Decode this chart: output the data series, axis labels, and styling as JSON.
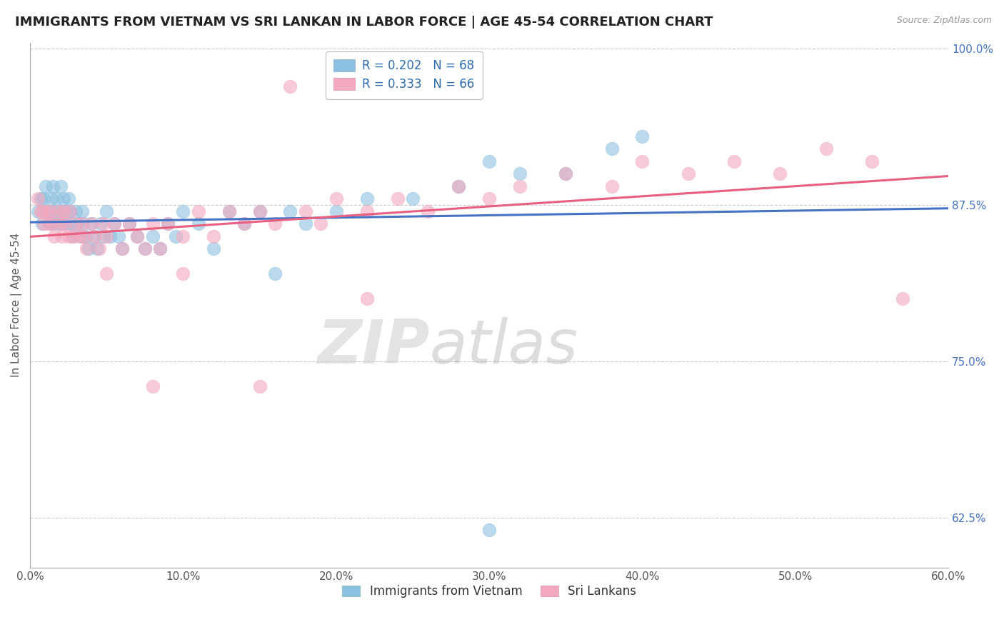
{
  "title": "IMMIGRANTS FROM VIETNAM VS SRI LANKAN IN LABOR FORCE | AGE 45-54 CORRELATION CHART",
  "source": "Source: ZipAtlas.com",
  "ylabel": "In Labor Force | Age 45-54",
  "xlim": [
    0.0,
    0.6
  ],
  "ylim": [
    0.585,
    1.005
  ],
  "xticks": [
    0.0,
    0.1,
    0.2,
    0.3,
    0.4,
    0.5,
    0.6
  ],
  "xticklabels": [
    "0.0%",
    "10.0%",
    "20.0%",
    "30.0%",
    "40.0%",
    "50.0%",
    "60.0%"
  ],
  "yticks_right": [
    0.625,
    0.75,
    0.875,
    1.0
  ],
  "yticklabels_right": [
    "62.5%",
    "75.0%",
    "87.5%",
    "100.0%"
  ],
  "yticks_grid": [
    0.625,
    0.75,
    0.875,
    1.0
  ],
  "legend_vietnam": "Immigrants from Vietnam",
  "legend_srilanka": "Sri Lankans",
  "R_vietnam": 0.202,
  "N_vietnam": 68,
  "R_srilanka": 0.333,
  "N_srilanka": 66,
  "color_vietnam": "#8CC0E0",
  "color_srilanka": "#F4A8BE",
  "color_trendline_vietnam": "#4472C4",
  "color_trendline_srilanka": "#E86080",
  "background_color": "#FFFFFF",
  "grid_color": "#CCCCCC",
  "title_fontsize": 13,
  "axis_label_fontsize": 11,
  "tick_fontsize": 11,
  "legend_fontsize": 12,
  "scatter_vietnam_x": [
    0.005,
    0.007,
    0.008,
    0.009,
    0.01,
    0.01,
    0.012,
    0.013,
    0.014,
    0.015,
    0.015,
    0.016,
    0.017,
    0.018,
    0.019,
    0.02,
    0.02,
    0.021,
    0.022,
    0.023,
    0.024,
    0.025,
    0.026,
    0.027,
    0.028,
    0.03,
    0.031,
    0.033,
    0.034,
    0.035,
    0.036,
    0.038,
    0.04,
    0.042,
    0.044,
    0.046,
    0.048,
    0.05,
    0.052,
    0.055,
    0.058,
    0.06,
    0.065,
    0.07,
    0.075,
    0.08,
    0.085,
    0.09,
    0.095,
    0.1,
    0.11,
    0.12,
    0.13,
    0.14,
    0.15,
    0.16,
    0.17,
    0.18,
    0.2,
    0.22,
    0.25,
    0.28,
    0.3,
    0.32,
    0.35,
    0.38,
    0.4,
    0.3
  ],
  "scatter_vietnam_y": [
    0.87,
    0.88,
    0.86,
    0.88,
    0.87,
    0.89,
    0.87,
    0.86,
    0.88,
    0.87,
    0.89,
    0.86,
    0.88,
    0.87,
    0.86,
    0.87,
    0.89,
    0.86,
    0.88,
    0.87,
    0.86,
    0.88,
    0.87,
    0.86,
    0.85,
    0.87,
    0.86,
    0.85,
    0.87,
    0.86,
    0.85,
    0.84,
    0.86,
    0.85,
    0.84,
    0.86,
    0.85,
    0.87,
    0.85,
    0.86,
    0.85,
    0.84,
    0.86,
    0.85,
    0.84,
    0.85,
    0.84,
    0.86,
    0.85,
    0.87,
    0.86,
    0.84,
    0.87,
    0.86,
    0.87,
    0.82,
    0.87,
    0.86,
    0.87,
    0.88,
    0.88,
    0.89,
    0.91,
    0.9,
    0.9,
    0.92,
    0.93,
    0.615
  ],
  "scatter_srilanka_x": [
    0.005,
    0.007,
    0.008,
    0.009,
    0.01,
    0.012,
    0.013,
    0.015,
    0.016,
    0.018,
    0.02,
    0.021,
    0.022,
    0.023,
    0.025,
    0.026,
    0.028,
    0.03,
    0.032,
    0.034,
    0.035,
    0.037,
    0.04,
    0.042,
    0.045,
    0.048,
    0.05,
    0.055,
    0.06,
    0.065,
    0.07,
    0.075,
    0.08,
    0.085,
    0.09,
    0.1,
    0.11,
    0.12,
    0.13,
    0.14,
    0.15,
    0.16,
    0.17,
    0.18,
    0.19,
    0.2,
    0.22,
    0.24,
    0.26,
    0.28,
    0.3,
    0.32,
    0.35,
    0.38,
    0.4,
    0.43,
    0.46,
    0.49,
    0.52,
    0.55,
    0.05,
    0.1,
    0.15,
    0.08,
    0.22,
    0.57
  ],
  "scatter_srilanka_y": [
    0.88,
    0.87,
    0.87,
    0.86,
    0.87,
    0.86,
    0.87,
    0.86,
    0.85,
    0.87,
    0.86,
    0.85,
    0.87,
    0.86,
    0.85,
    0.87,
    0.85,
    0.86,
    0.85,
    0.86,
    0.85,
    0.84,
    0.86,
    0.85,
    0.84,
    0.86,
    0.85,
    0.86,
    0.84,
    0.86,
    0.85,
    0.84,
    0.86,
    0.84,
    0.86,
    0.85,
    0.87,
    0.85,
    0.87,
    0.86,
    0.87,
    0.86,
    0.97,
    0.87,
    0.86,
    0.88,
    0.87,
    0.88,
    0.87,
    0.89,
    0.88,
    0.89,
    0.9,
    0.89,
    0.91,
    0.9,
    0.91,
    0.9,
    0.92,
    0.91,
    0.82,
    0.82,
    0.73,
    0.73,
    0.8,
    0.8
  ]
}
